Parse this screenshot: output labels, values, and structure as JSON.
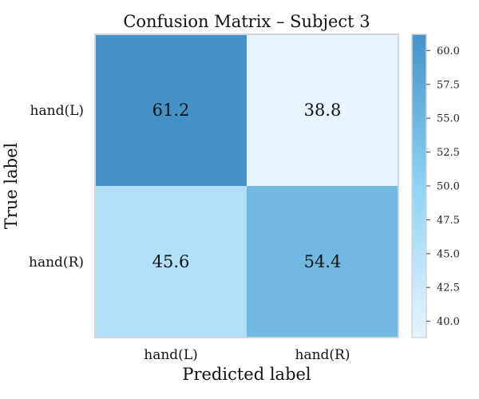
{
  "chart_data": {
    "type": "heatmap",
    "title": "Confusion Matrix – Subject 3",
    "xlabel": "Predicted label",
    "ylabel": "True label",
    "x_categories": [
      "hand(L)",
      "hand(R)"
    ],
    "y_categories": [
      "hand(L)",
      "hand(R)"
    ],
    "values": [
      [
        61.2,
        38.8
      ],
      [
        45.6,
        54.4
      ]
    ],
    "cell_labels": [
      [
        "61.2",
        "38.8"
      ],
      [
        "45.6",
        "54.4"
      ]
    ],
    "colorbar": {
      "range": [
        38.8,
        61.2
      ],
      "ticks": [
        40.0,
        42.5,
        45.0,
        47.5,
        50.0,
        52.5,
        55.0,
        57.5,
        60.0
      ],
      "tick_labels": [
        "40.0",
        "42.5",
        "45.0",
        "47.5",
        "50.0",
        "52.5",
        "55.0",
        "57.5",
        "60.0"
      ],
      "colors": [
        "#e8f4fc",
        "#8dd3f5",
        "#4592c8"
      ]
    },
    "grid": false
  }
}
